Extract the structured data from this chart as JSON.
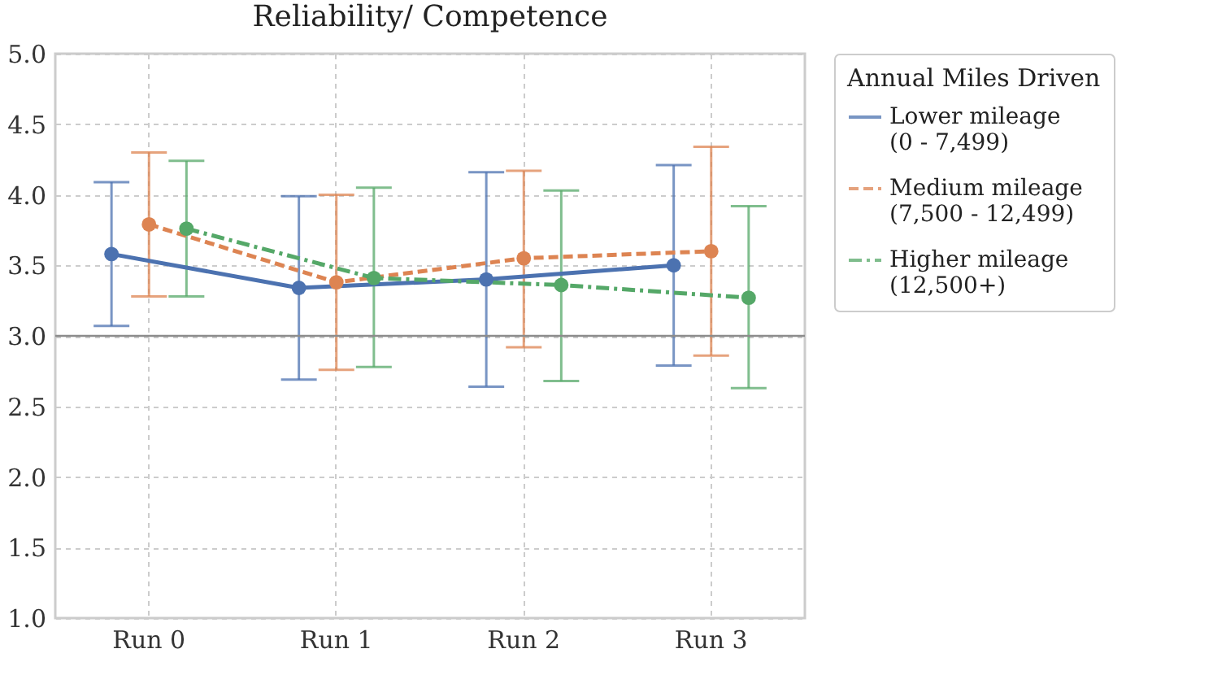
{
  "chart_data": {
    "type": "line",
    "title": "Reliability/ Competence",
    "categories": [
      "Run 0",
      "Run 1",
      "Run 2",
      "Run 3"
    ],
    "ylim": [
      1.0,
      5.0
    ],
    "yticks": [
      {
        "value": 1,
        "label": "1.0"
      },
      {
        "value": 1.5,
        "label": "1.5"
      },
      {
        "value": 2,
        "label": "2.0"
      },
      {
        "value": 2.5,
        "label": "2.5"
      },
      {
        "value": 3,
        "label": "3.0"
      },
      {
        "value": 3.5,
        "label": "3.5"
      },
      {
        "value": 4,
        "label": "4.0"
      },
      {
        "value": 4.5,
        "label": "4.5"
      },
      {
        "value": 5,
        "label": "5.0"
      }
    ],
    "grid": true,
    "legend": "right",
    "legend_title": "Annual Miles Driven",
    "marker": "circle",
    "series": [
      {
        "name": "Lower mileage\n(0 - 7,499)",
        "color": "#4c72b0",
        "line_style": "solid",
        "values": [
          3.58,
          3.34,
          3.4,
          3.5
        ],
        "errors": [
          [
            3.07,
            4.09
          ],
          [
            2.69,
            3.99
          ],
          [
            2.64,
            4.16
          ],
          [
            2.79,
            4.21
          ]
        ]
      },
      {
        "name": "Medium mileage\n(7,500 - 12,499)",
        "color": "#dd8452",
        "line_style": "dashed",
        "values": [
          3.79,
          3.38,
          3.55,
          3.6
        ],
        "errors": [
          [
            3.28,
            4.3
          ],
          [
            2.76,
            4.0
          ],
          [
            2.92,
            4.17
          ],
          [
            2.86,
            4.34
          ]
        ]
      },
      {
        "name": "Higher mileage\n(12,500+)",
        "color": "#55a868",
        "line_style": "dashdot",
        "values": [
          3.76,
          3.41,
          3.36,
          3.27
        ],
        "errors": [
          [
            3.28,
            4.24
          ],
          [
            2.78,
            4.05
          ],
          [
            2.68,
            4.03
          ],
          [
            2.63,
            3.92
          ]
        ]
      }
    ],
    "ref_lines": [
      {
        "axis": "y",
        "value": 3,
        "color": "#8c8c8c"
      }
    ]
  }
}
